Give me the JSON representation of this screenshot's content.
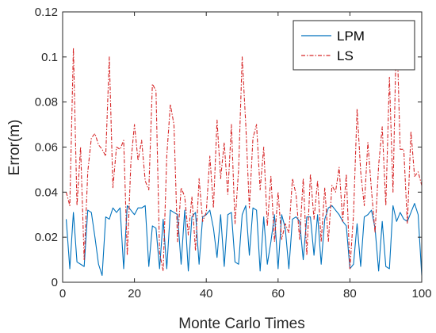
{
  "chart_data": {
    "type": "line",
    "xlabel": "Monte Carlo Times",
    "ylabel": "Error(m)",
    "xlim": [
      0,
      100
    ],
    "ylim": [
      0,
      0.12
    ],
    "xticks": [
      "0",
      "20",
      "40",
      "60",
      "80",
      "100"
    ],
    "yticks": [
      "0",
      "0.02",
      "0.04",
      "0.06",
      "0.08",
      "0.1",
      "0.12"
    ],
    "grid": false,
    "legend_position": "top-right",
    "x": [
      1,
      2,
      3,
      4,
      5,
      6,
      7,
      8,
      9,
      10,
      11,
      12,
      13,
      14,
      15,
      16,
      17,
      18,
      19,
      20,
      21,
      22,
      23,
      24,
      25,
      26,
      27,
      28,
      29,
      30,
      31,
      32,
      33,
      34,
      35,
      36,
      37,
      38,
      39,
      40,
      41,
      42,
      43,
      44,
      45,
      46,
      47,
      48,
      49,
      50,
      51,
      52,
      53,
      54,
      55,
      56,
      57,
      58,
      59,
      60,
      61,
      62,
      63,
      64,
      65,
      66,
      67,
      68,
      69,
      70,
      71,
      72,
      73,
      74,
      75,
      76,
      77,
      78,
      79,
      80,
      81,
      82,
      83,
      84,
      85,
      86,
      87,
      88,
      89,
      90,
      91,
      92,
      93,
      94,
      95,
      96,
      97,
      98,
      99,
      100
    ],
    "series": [
      {
        "name": "LPM",
        "color": "#0072BD",
        "style": "solid",
        "values": [
          0.028,
          0.006,
          0.031,
          0.009,
          0.008,
          0.007,
          0.032,
          0.031,
          0.02,
          0.008,
          0.003,
          0.029,
          0.028,
          0.033,
          0.031,
          0.033,
          0.006,
          0.034,
          0.032,
          0.03,
          0.033,
          0.033,
          0.034,
          0.007,
          0.025,
          0.024,
          0.006,
          0.028,
          0.006,
          0.032,
          0.031,
          0.03,
          0.008,
          0.032,
          0.005,
          0.029,
          0.031,
          0.008,
          0.029,
          0.03,
          0.032,
          0.024,
          0.011,
          0.03,
          0.007,
          0.03,
          0.031,
          0.009,
          0.008,
          0.03,
          0.034,
          0.012,
          0.033,
          0.032,
          0.005,
          0.029,
          0.008,
          0.018,
          0.03,
          0.006,
          0.03,
          0.024,
          0.006,
          0.028,
          0.029,
          0.027,
          0.01,
          0.029,
          0.029,
          0.012,
          0.03,
          0.008,
          0.028,
          0.033,
          0.034,
          0.032,
          0.03,
          0.027,
          0.025,
          0.006,
          0.008,
          0.026,
          0.007,
          0.029,
          0.03,
          0.032,
          0.024,
          0.005,
          0.027,
          0.007,
          0.006,
          0.034,
          0.027,
          0.031,
          0.028,
          0.027,
          0.031,
          0.035,
          0.03,
          0.003
        ]
      },
      {
        "name": "LS",
        "color": "#D62728",
        "style": "dashdot",
        "values": [
          0.04,
          0.034,
          0.104,
          0.034,
          0.06,
          0.01,
          0.049,
          0.064,
          0.066,
          0.061,
          0.059,
          0.056,
          0.1,
          0.042,
          0.06,
          0.059,
          0.063,
          0.012,
          0.053,
          0.07,
          0.054,
          0.063,
          0.045,
          0.041,
          0.088,
          0.085,
          0.013,
          0.005,
          0.056,
          0.079,
          0.07,
          0.018,
          0.042,
          0.038,
          0.021,
          0.038,
          0.014,
          0.046,
          0.027,
          0.031,
          0.056,
          0.033,
          0.072,
          0.046,
          0.062,
          0.039,
          0.07,
          0.026,
          0.05,
          0.1,
          0.07,
          0.033,
          0.064,
          0.07,
          0.041,
          0.06,
          0.025,
          0.047,
          0.018,
          0.04,
          0.019,
          0.026,
          0.022,
          0.046,
          0.039,
          0.019,
          0.046,
          0.012,
          0.048,
          0.028,
          0.045,
          0.018,
          0.042,
          0.018,
          0.043,
          0.04,
          0.051,
          0.027,
          0.048,
          0.006,
          0.03,
          0.077,
          0.049,
          0.034,
          0.062,
          0.041,
          0.022,
          0.052,
          0.069,
          0.034,
          0.091,
          0.04,
          0.116,
          0.059,
          0.059,
          0.026,
          0.067,
          0.047,
          0.049,
          0.043
        ]
      }
    ]
  }
}
